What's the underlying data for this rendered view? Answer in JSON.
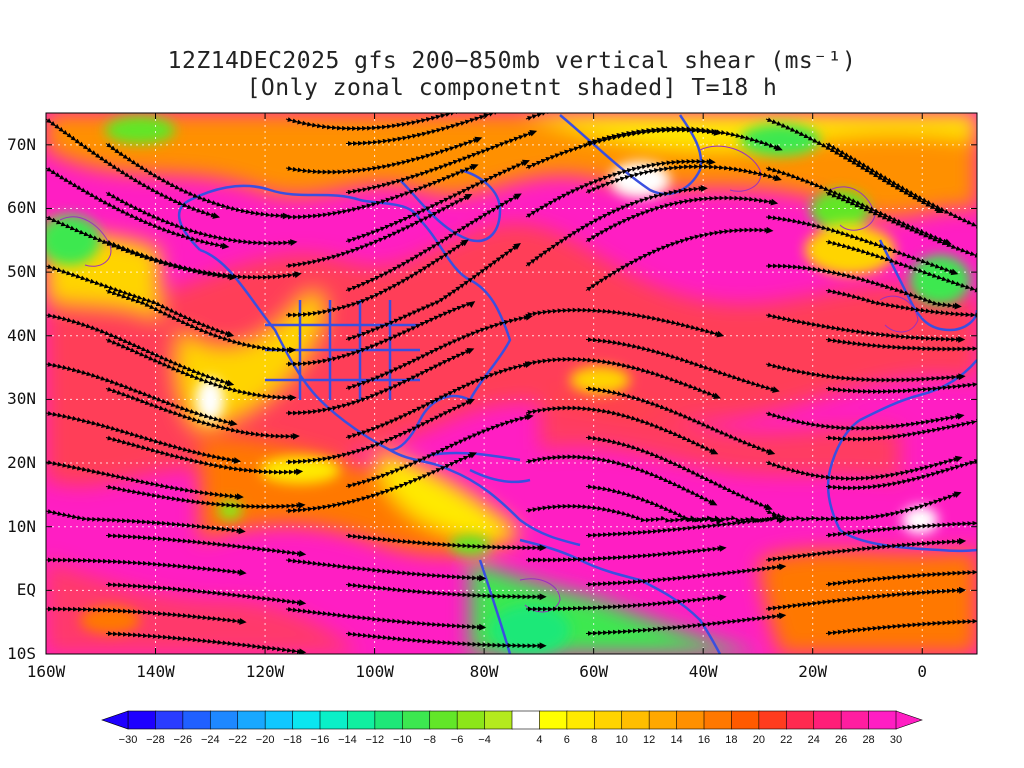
{
  "title": {
    "line1": "12Z14DEC2025 gfs 200−850mb vertical shear (ms⁻¹)",
    "line2": "[Only zonal componetnt shaded] T=18 h"
  },
  "map": {
    "lat_labels": [
      "70N",
      "60N",
      "50N",
      "40N",
      "30N",
      "20N",
      "10N",
      "EQ",
      "10S"
    ],
    "lon_labels": [
      "160W",
      "140W",
      "120W",
      "100W",
      "80W",
      "60W",
      "40W",
      "20W",
      "0"
    ],
    "lat_range": [
      -10,
      75
    ],
    "lon_range": [
      -160,
      10
    ],
    "grid": "dotted",
    "coastline_color": "#3a4fe0",
    "contour_color": "#9a2fbf",
    "streamline_color": "#000000"
  },
  "colorbar": {
    "tick_labels": [
      "−30",
      "−28",
      "−26",
      "−24",
      "−22",
      "−20",
      "−18",
      "−16",
      "−14",
      "−12",
      "−10",
      "−8",
      "−6",
      "−4",
      "4",
      "6",
      "8",
      "10",
      "12",
      "14",
      "16",
      "18",
      "20",
      "22",
      "24",
      "26",
      "28",
      "30"
    ],
    "colors": [
      "#1e00ff",
      "#2a3cff",
      "#2060ff",
      "#1e88ff",
      "#18a8ff",
      "#10c8ff",
      "#0ae6f0",
      "#0af0c8",
      "#10f0a0",
      "#1ee878",
      "#3ce850",
      "#62e628",
      "#8ce619",
      "#b4ea1e",
      "#ffffff",
      "#ffff00",
      "#ffea00",
      "#ffd400",
      "#ffbe00",
      "#ffa800",
      "#ff9000",
      "#ff7800",
      "#ff5a00",
      "#ff3c1e",
      "#ff2a50",
      "#ff1e78",
      "#ff1ea0",
      "#ff1ec3"
    ]
  }
}
